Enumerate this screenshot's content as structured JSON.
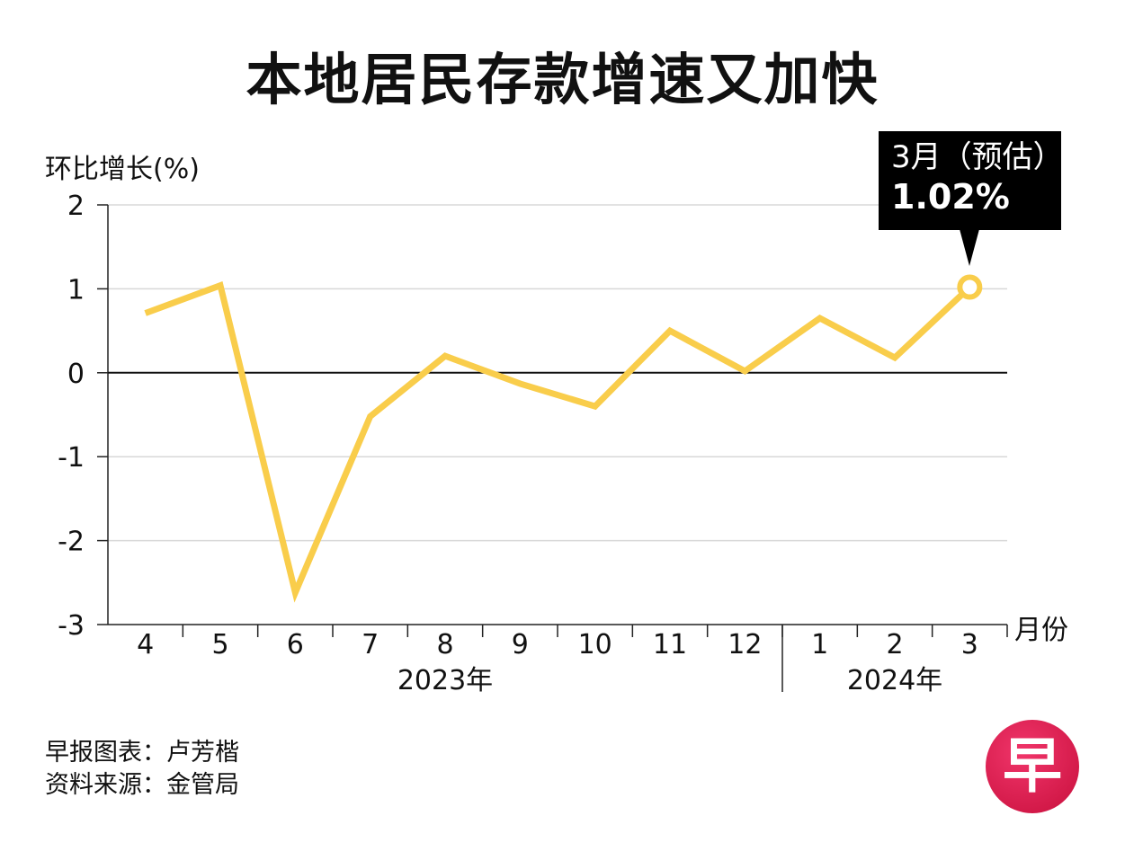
{
  "title": "本地居民存款增速又加快",
  "chart_data": {
    "type": "line",
    "title": "本地居民存款增速又加快",
    "ylabel": "环比增长(%)",
    "xlabel": "月份",
    "ylim": [
      -3,
      2
    ],
    "yticks": [
      "2",
      "1",
      "0",
      "-1",
      "-2",
      "-3"
    ],
    "categories": [
      "4",
      "5",
      "6",
      "7",
      "8",
      "9",
      "10",
      "11",
      "12",
      "1",
      "2",
      "3"
    ],
    "year_groups": [
      {
        "label": "2023年",
        "months": 9
      },
      {
        "label": "2024年",
        "months": 3
      }
    ],
    "values": [
      0.71,
      1.04,
      -2.62,
      -0.52,
      0.2,
      -0.13,
      -0.4,
      0.5,
      0.02,
      0.65,
      0.18,
      1.02
    ],
    "grid": true,
    "line_color": "#f9cd4b",
    "annotation": {
      "line1": "3月（预估）",
      "line2": "1.02%"
    }
  },
  "credits": {
    "line1": "早报图表：卢芳楷",
    "line2": "资料来源：金管局"
  },
  "logo": "早",
  "colors": {
    "line": "#f9cd4b",
    "logo": "#d6144a",
    "callout": "#000000"
  }
}
